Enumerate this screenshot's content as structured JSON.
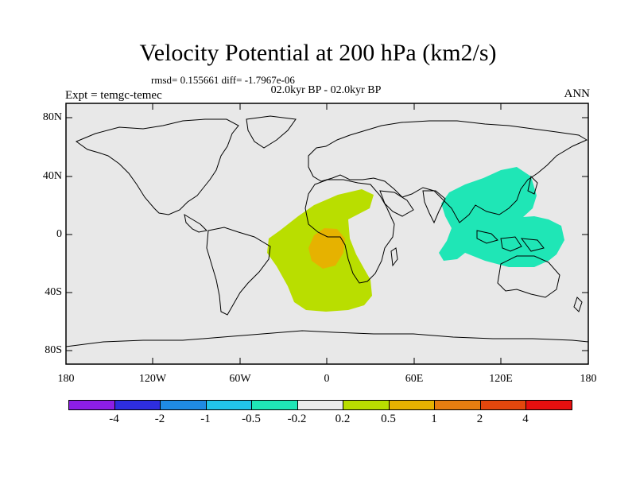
{
  "header": {
    "title": "Velocity Potential at 200 hPa (km2/s)",
    "stats": "rmsd= 0.155661 diff= -1.7967e-06",
    "period": "02.0kyr BP - 02.0kyr BP",
    "experiment": "Expt = temgc-temec",
    "season": "ANN"
  },
  "axes": {
    "lat_labels": [
      "80N",
      "40N",
      "0",
      "40S",
      "80S"
    ],
    "lon_labels": [
      "180",
      "120W",
      "60W",
      "0",
      "60E",
      "120E",
      "180"
    ]
  },
  "colorbar": {
    "colors": [
      "#8d1ee6",
      "#2e2ee0",
      "#1f8be4",
      "#22c4e9",
      "#1fe6b6",
      "#ececec",
      "#b9de00",
      "#e6b200",
      "#e67e10",
      "#e4470d",
      "#e60f0f"
    ],
    "labels": [
      "-4",
      "-2",
      "-1",
      "-0.5",
      "-0.2",
      "0.2",
      "0.5",
      "1",
      "2",
      "4"
    ]
  },
  "map": {
    "background": "#e8e8e8",
    "anomalies": [
      {
        "name": "atlantic-africa-positive",
        "level": "0.2 to 0.5",
        "color": "#b9de00"
      },
      {
        "name": "central-africa-positive-core",
        "level": "0.5 to 1",
        "color": "#e6b200"
      },
      {
        "name": "west-pacific-negative",
        "level": "-0.5 to -0.2",
        "color": "#1fe6b6"
      }
    ]
  }
}
